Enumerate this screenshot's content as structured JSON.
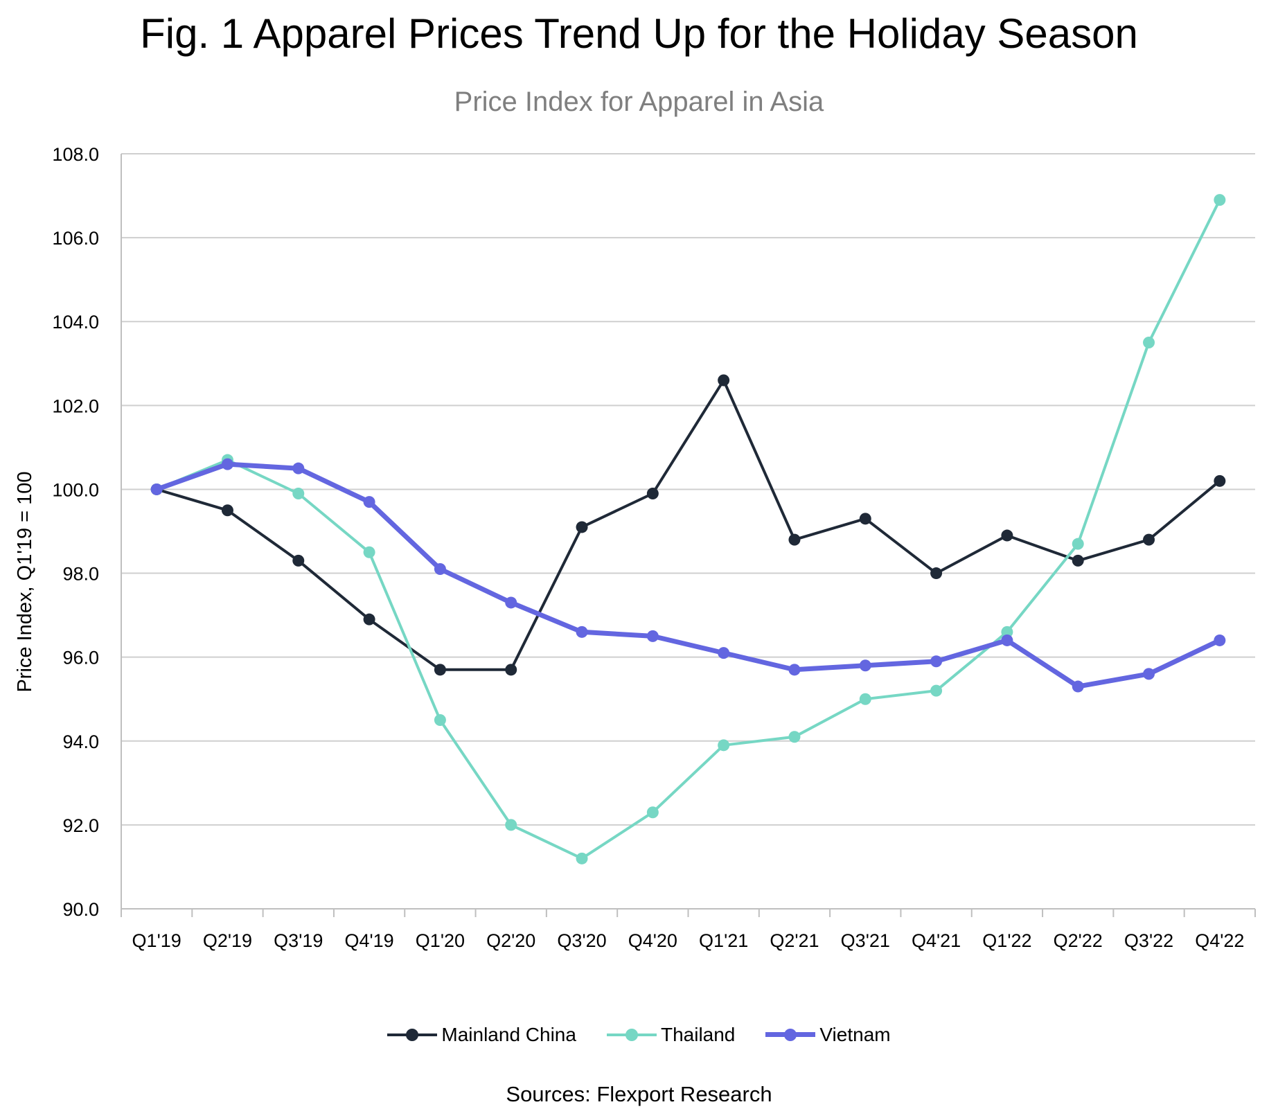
{
  "figure_title": "Fig. 1 Apparel Prices Trend Up for the Holiday Season",
  "source_note": "Sources: Flexport Research",
  "chart_data": {
    "type": "line",
    "title": "Price Index for Apparel in Asia",
    "xlabel": "",
    "ylabel": "Price Index, Q1'19 = 100",
    "categories": [
      "Q1'19",
      "Q2'19",
      "Q3'19",
      "Q4'19",
      "Q1'20",
      "Q2'20",
      "Q3'20",
      "Q4'20",
      "Q1'21",
      "Q2'21",
      "Q3'21",
      "Q4'21",
      "Q1'22",
      "Q2'22",
      "Q3'22",
      "Q4'22"
    ],
    "ylim": [
      90,
      108
    ],
    "yticks": [
      90,
      92,
      94,
      96,
      98,
      100,
      102,
      104,
      106,
      108
    ],
    "ytick_labels": [
      "90.0",
      "92.0",
      "94.0",
      "96.0",
      "98.0",
      "100.0",
      "102.0",
      "104.0",
      "106.0",
      "108.0"
    ],
    "grid": true,
    "legend_position": "bottom",
    "series": [
      {
        "name": "Mainland China",
        "color": "#1f2937",
        "values": [
          100.0,
          99.5,
          98.3,
          96.9,
          95.7,
          95.7,
          99.1,
          99.9,
          102.6,
          98.8,
          99.3,
          98.0,
          98.9,
          98.3,
          98.8,
          100.2
        ]
      },
      {
        "name": "Thailand",
        "color": "#76d7c4",
        "values": [
          100.0,
          100.7,
          99.9,
          98.5,
          94.5,
          92.0,
          91.2,
          92.3,
          93.9,
          94.1,
          95.0,
          95.2,
          96.6,
          98.7,
          103.5,
          106.9
        ]
      },
      {
        "name": "Vietnam",
        "color": "#6366e0",
        "values": [
          100.0,
          100.6,
          100.5,
          99.7,
          98.1,
          97.3,
          96.6,
          96.5,
          96.1,
          95.7,
          95.8,
          95.9,
          96.4,
          95.3,
          95.6,
          96.4
        ]
      }
    ]
  }
}
